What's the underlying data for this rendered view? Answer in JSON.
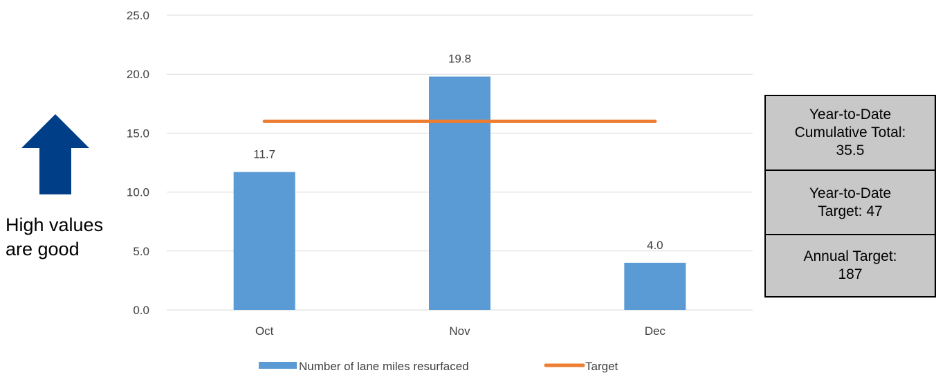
{
  "chart_data": {
    "type": "bar",
    "categories": [
      "Oct",
      "Nov",
      "Dec"
    ],
    "series": [
      {
        "name": "Number of lane miles resurfaced",
        "type": "bar",
        "values": [
          11.7,
          19.8,
          4.0
        ],
        "data_labels": [
          "11.7",
          "19.8",
          "4.0"
        ],
        "color": "#5b9bd5"
      },
      {
        "name": "Target",
        "type": "line",
        "values": [
          16.0,
          16.0,
          16.0
        ],
        "color": "#ed7d31"
      }
    ],
    "ylim": [
      0,
      25
    ],
    "yticks": [
      "0.0",
      "5.0",
      "10.0",
      "15.0",
      "20.0",
      "25.0"
    ],
    "grid": true,
    "legend_position": "bottom"
  },
  "indicator": {
    "arrow_direction": "up",
    "arrow_color": "#003f87",
    "text_line1": "High values",
    "text_line2": "are good"
  },
  "summary": {
    "ytd_total_line1": "Year-to-Date",
    "ytd_total_line2": "Cumulative Total:",
    "ytd_total_value": "35.5",
    "ytd_target_line1": "Year-to-Date",
    "ytd_target_line2": "Target:  47",
    "annual_target_line1": "Annual Target:",
    "annual_target_line2": "187"
  },
  "colors": {
    "gridline": "#d9d9d9",
    "summary_background": "#c8c8c8"
  }
}
